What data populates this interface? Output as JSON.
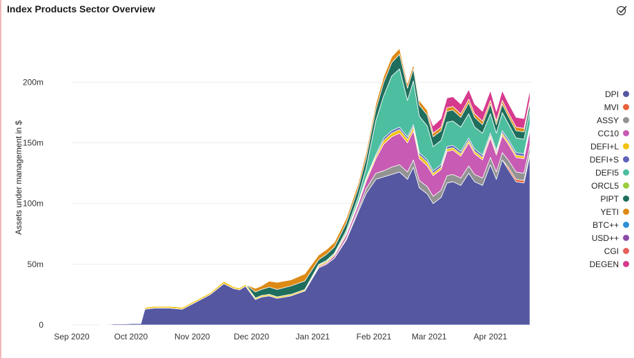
{
  "header": {
    "title": "Index Products Sector Overview",
    "action_icon": "check-circle-icon"
  },
  "chart_data": {
    "type": "area",
    "stacked": true,
    "title": "Index Products Sector Overview",
    "xlabel": "",
    "ylabel": "Assets under management in $",
    "y_unit": "USD",
    "ylim": [
      0,
      245000000
    ],
    "yticks": [
      0,
      50000000,
      100000000,
      150000000,
      200000000
    ],
    "ytick_labels": [
      "0",
      "50m",
      "100m",
      "150m",
      "200m"
    ],
    "xlim": [
      "2020-09-01",
      "2021-04-22"
    ],
    "xticks": [
      "2020-09-01",
      "2020-10-01",
      "2020-11-01",
      "2020-12-01",
      "2021-01-01",
      "2021-02-01",
      "2021-03-01",
      "2021-04-01"
    ],
    "xtick_labels": [
      "Sep 2020",
      "Oct 2020",
      "Nov 2020",
      "Dec 2020",
      "Jan 2021",
      "Feb 2021",
      "Mar 2021",
      "Apr 2021"
    ],
    "grid": "horizontal",
    "legend_position": "right",
    "x": [
      "2020-09-15",
      "2020-09-22",
      "2020-09-29",
      "2020-10-06",
      "2020-10-08",
      "2020-10-13",
      "2020-10-20",
      "2020-10-27",
      "2020-11-03",
      "2020-11-10",
      "2020-11-17",
      "2020-11-22",
      "2020-11-25",
      "2020-11-28",
      "2020-12-03",
      "2020-12-06",
      "2020-12-10",
      "2020-12-14",
      "2020-12-21",
      "2020-12-28",
      "2021-01-04",
      "2021-01-08",
      "2021-01-12",
      "2021-01-18",
      "2021-01-24",
      "2021-01-28",
      "2021-02-02",
      "2021-02-06",
      "2021-02-10",
      "2021-02-14",
      "2021-02-18",
      "2021-02-21",
      "2021-02-24",
      "2021-02-28",
      "2021-03-03",
      "2021-03-07",
      "2021-03-10",
      "2021-03-13",
      "2021-03-17",
      "2021-03-21",
      "2021-03-24",
      "2021-03-28",
      "2021-04-01",
      "2021-04-04",
      "2021-04-07",
      "2021-04-10",
      "2021-04-14",
      "2021-04-18",
      "2021-04-21"
    ],
    "series": [
      {
        "name": "DPI",
        "color": "#5558a0",
        "values": [
          0,
          0.8,
          1,
          1.2,
          13,
          14,
          14,
          13,
          19,
          25,
          34,
          30,
          29,
          32,
          21,
          23,
          24,
          22,
          24,
          28,
          47,
          50,
          55,
          70,
          93,
          108,
          120,
          122,
          124,
          126,
          120,
          130,
          113,
          108,
          100,
          105,
          117,
          118,
          115,
          125,
          118,
          115,
          132,
          120,
          136,
          128,
          118,
          117,
          140
        ]
      },
      {
        "name": "MVI",
        "color": "#e8623c",
        "values": [
          0,
          0,
          0,
          0,
          0,
          0,
          0,
          0,
          0,
          0,
          0,
          0,
          0,
          0,
          0,
          0,
          0,
          0,
          0,
          0,
          0,
          0,
          0,
          0,
          0,
          0,
          0,
          0,
          0,
          0,
          0,
          0,
          0,
          0,
          0,
          0,
          0,
          0,
          0,
          0,
          0,
          0,
          0,
          0,
          0,
          2,
          2,
          2,
          2
        ]
      },
      {
        "name": "ASSY",
        "color": "#939393",
        "values": [
          0,
          0,
          0,
          0,
          0,
          0,
          0,
          0,
          0,
          0,
          0,
          0,
          0,
          0,
          0,
          0,
          0,
          0,
          0,
          0,
          0,
          0,
          0,
          1,
          2,
          4,
          5,
          5,
          6,
          6,
          6,
          6,
          6,
          6,
          6,
          6,
          6,
          6,
          6,
          6,
          6,
          6,
          6,
          6,
          6,
          6,
          6,
          6,
          6
        ]
      },
      {
        "name": "CC10",
        "color": "#c85bb3",
        "values": [
          0,
          0,
          0,
          0,
          0,
          0,
          0,
          0,
          0,
          0,
          0,
          0,
          0,
          0,
          0,
          0,
          0,
          0,
          0,
          0,
          1,
          1,
          2,
          3,
          4,
          6,
          12,
          22,
          25,
          26,
          24,
          24,
          18,
          17,
          17,
          17,
          20,
          20,
          18,
          19,
          17,
          15,
          16,
          14,
          14,
          13,
          12,
          12,
          13
        ]
      },
      {
        "name": "DEFI+L",
        "color": "#f2c20c",
        "values": [
          0,
          0.3,
          0.3,
          0.4,
          1.5,
          1.5,
          1.5,
          1.5,
          1.5,
          1.5,
          2,
          1.5,
          1.5,
          1.5,
          1.2,
          1.2,
          1.2,
          1.2,
          1.2,
          1.2,
          1.2,
          1.2,
          1.2,
          1.4,
          1.6,
          1.8,
          2,
          3,
          3,
          3,
          3,
          3,
          3,
          3,
          2,
          2,
          2,
          2,
          2,
          2,
          2,
          2,
          2,
          2,
          2,
          2,
          2,
          2,
          2
        ]
      },
      {
        "name": "DEFI+S",
        "color": "#5e63b8",
        "values": [
          0,
          0,
          0,
          0,
          0,
          0,
          0,
          0,
          0,
          0,
          0,
          0,
          0,
          0,
          0,
          0,
          0,
          0,
          0,
          0,
          0,
          0,
          0,
          0.5,
          0.8,
          1,
          1.5,
          2,
          2,
          2,
          2,
          2,
          2,
          2,
          2,
          2,
          2,
          2,
          2,
          2,
          2,
          2,
          2,
          2,
          2,
          2,
          2,
          2,
          2
        ]
      },
      {
        "name": "DEFI5",
        "color": "#4dbe9f",
        "values": [
          0,
          0,
          0,
          0,
          0,
          0,
          0,
          0,
          0,
          0,
          0,
          0,
          0,
          0,
          0,
          0,
          0,
          0,
          0,
          0,
          0.5,
          1,
          1,
          2,
          4,
          8,
          28,
          35,
          45,
          48,
          30,
          36,
          30,
          28,
          20,
          20,
          20,
          20,
          20,
          20,
          18,
          18,
          16,
          14,
          15,
          13,
          12,
          12,
          12
        ]
      },
      {
        "name": "ORCL5",
        "color": "#9bcc3c",
        "values": [
          0,
          0,
          0,
          0,
          0,
          0,
          0,
          0,
          0,
          0,
          0,
          0,
          0,
          0,
          0,
          0,
          0,
          0,
          0,
          0,
          0,
          0,
          0,
          0,
          0,
          0,
          0,
          0,
          0,
          0,
          0,
          0,
          0,
          0,
          0,
          0,
          0,
          0,
          0,
          0,
          0,
          0,
          0,
          0,
          0,
          0,
          0,
          0,
          0
        ]
      },
      {
        "name": "PIPT",
        "color": "#1f6e5d",
        "values": [
          0,
          0,
          0,
          0,
          0,
          0,
          0,
          0,
          0,
          0,
          0,
          0,
          0,
          0,
          5,
          5,
          6,
          6,
          7,
          7,
          4,
          5,
          5,
          6,
          7,
          8,
          9,
          11,
          11,
          12,
          10,
          10,
          9,
          9,
          8,
          8,
          9,
          9,
          8,
          9,
          8,
          7,
          8,
          7,
          7,
          6,
          6,
          6,
          6
        ]
      },
      {
        "name": "YETI",
        "color": "#dd8a16",
        "values": [
          0,
          0,
          0,
          0,
          0,
          0,
          0,
          0,
          0,
          0,
          0,
          0,
          0,
          0,
          3,
          3,
          5,
          6,
          5,
          6,
          4,
          4,
          4,
          4,
          4,
          5,
          5,
          5,
          5,
          5,
          4,
          4,
          4,
          4,
          3,
          3,
          3,
          3,
          3,
          3,
          3,
          3,
          3,
          3,
          3,
          3,
          3,
          3,
          3
        ]
      },
      {
        "name": "BTC++",
        "color": "#2e8fd6",
        "values": [
          0,
          0,
          0,
          0,
          0,
          0,
          0,
          0,
          0,
          0,
          0,
          0,
          0,
          0,
          0,
          0,
          0,
          0,
          0,
          0,
          0,
          0,
          0,
          0,
          0,
          0,
          0,
          0,
          0,
          0,
          0,
          0,
          0,
          0,
          0,
          0,
          0,
          0,
          0,
          0,
          0,
          0,
          0,
          0,
          0,
          0,
          0,
          0,
          0
        ]
      },
      {
        "name": "USD++",
        "color": "#8a4ba6",
        "values": [
          0,
          0,
          0,
          0,
          0,
          0,
          0,
          0,
          0,
          0,
          0,
          0,
          0,
          0,
          0,
          0,
          0,
          0,
          0,
          0,
          0,
          0,
          0,
          0,
          0,
          0,
          0,
          0,
          0,
          0,
          0,
          0,
          0,
          0,
          0,
          0,
          0,
          0,
          0,
          0,
          0,
          0,
          0,
          0,
          0,
          0,
          0,
          0,
          0
        ]
      },
      {
        "name": "CGI",
        "color": "#e8605c",
        "values": [
          0,
          0,
          0,
          0,
          0,
          0,
          0,
          0,
          0,
          0,
          0,
          0,
          0,
          0,
          0,
          0,
          0,
          0,
          0,
          0,
          0,
          0,
          0,
          0,
          0,
          0,
          0,
          0,
          0,
          0,
          0,
          0,
          0,
          0,
          0,
          0,
          0,
          0,
          0,
          0,
          0,
          0,
          0,
          0,
          0,
          0,
          0,
          0,
          0
        ]
      },
      {
        "name": "DEGEN",
        "color": "#d63a8e",
        "values": [
          0,
          0,
          0,
          0,
          0,
          0,
          0,
          0,
          0,
          0,
          0,
          0,
          0,
          0,
          0,
          0,
          0,
          0,
          0,
          0,
          0,
          0,
          0,
          0,
          0,
          0,
          0,
          0,
          0,
          0,
          0,
          0,
          0,
          0,
          6,
          7,
          8,
          8,
          8,
          8,
          8,
          8,
          8,
          8,
          8,
          8,
          8,
          8,
          8
        ]
      }
    ],
    "value_scale": 1000000
  }
}
